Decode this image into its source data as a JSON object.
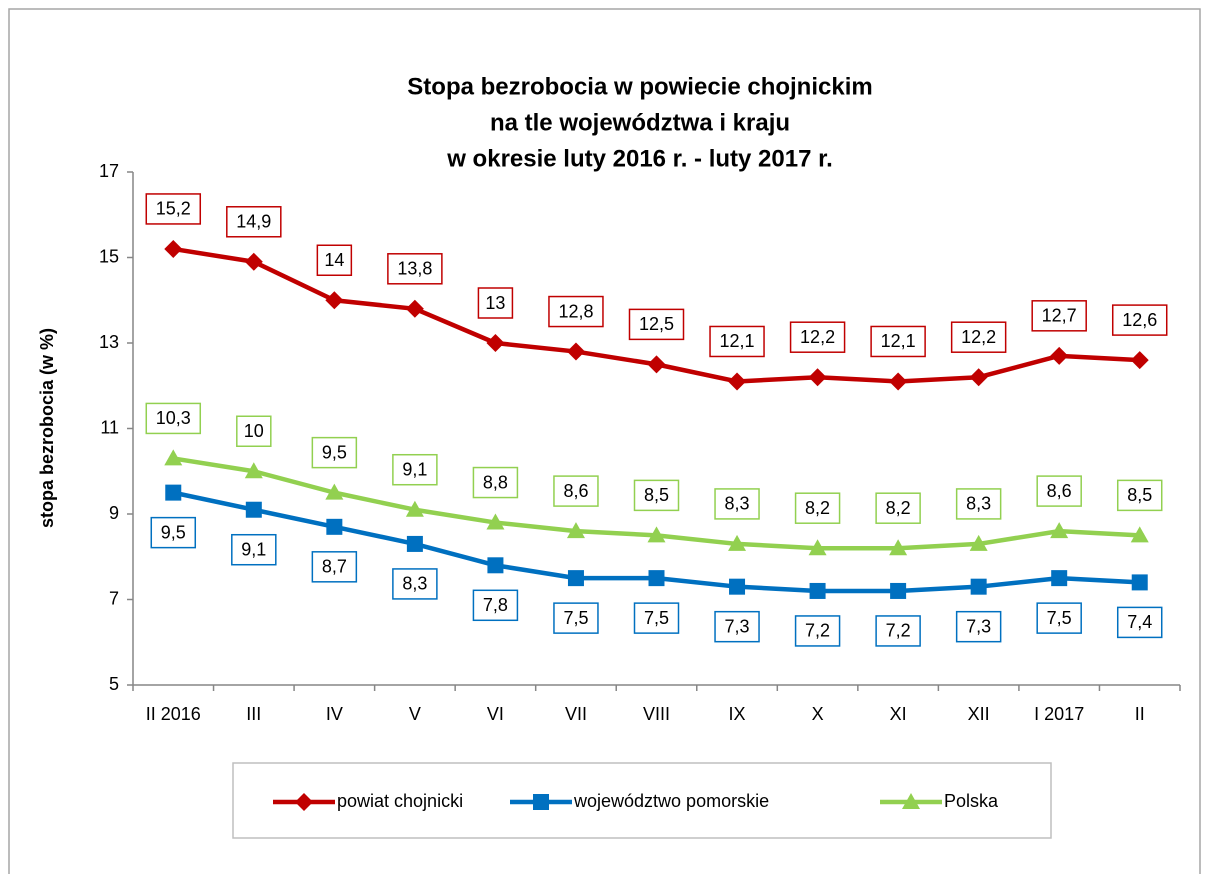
{
  "chart_data": {
    "type": "line",
    "title": [
      "Stopa bezrobocia w powiecie chojnickim",
      "na tle województwa i kraju",
      "w okresie luty 2016 r. - luty 2017 r."
    ],
    "y_label": "stopa bezrobocia (w %)",
    "categories": [
      "II 2016",
      "III",
      "IV",
      "V",
      "VI",
      "VII",
      "VIII",
      "IX",
      "X",
      "XI",
      "XII",
      "I 2017",
      "II"
    ],
    "series": [
      {
        "name": "powiat chojnicki",
        "color": "#c00000",
        "marker": "diamond",
        "values": [
          15.2,
          14.9,
          14,
          13.8,
          13,
          12.8,
          12.5,
          12.1,
          12.2,
          12.1,
          12.2,
          12.7,
          12.6
        ],
        "value_labels": [
          "15,2",
          "14,9",
          "14",
          "13,8",
          "13",
          "12,8",
          "12,5",
          "12,1",
          "12,2",
          "12,1",
          "12,2",
          "12,7",
          "12,6"
        ],
        "label_position": "above"
      },
      {
        "name": "województwo pomorskie",
        "color": "#0070c0",
        "marker": "square",
        "values": [
          9.5,
          9.1,
          8.7,
          8.3,
          7.8,
          7.5,
          7.5,
          7.3,
          7.2,
          7.2,
          7.3,
          7.5,
          7.4
        ],
        "value_labels": [
          "9,5",
          "9,1",
          "8,7",
          "8,3",
          "7,8",
          "7,5",
          "7,5",
          "7,3",
          "7,2",
          "7,2",
          "7,3",
          "7,5",
          "7,4"
        ],
        "label_position": "below"
      },
      {
        "name": "Polska",
        "color": "#92d050",
        "marker": "triangle",
        "values": [
          10.3,
          10,
          9.5,
          9.1,
          8.8,
          8.6,
          8.5,
          8.3,
          8.2,
          8.2,
          8.3,
          8.6,
          8.5
        ],
        "value_labels": [
          "10,3",
          "10",
          "9,5",
          "9,1",
          "8,8",
          "8,6",
          "8,5",
          "8,3",
          "8,2",
          "8,2",
          "8,3",
          "8,6",
          "8,5"
        ],
        "label_position": "above"
      }
    ],
    "ylim": [
      5,
      17
    ],
    "yticks": [
      5,
      7,
      9,
      11,
      13,
      15,
      17
    ],
    "grid": false,
    "legend": "bottom"
  }
}
